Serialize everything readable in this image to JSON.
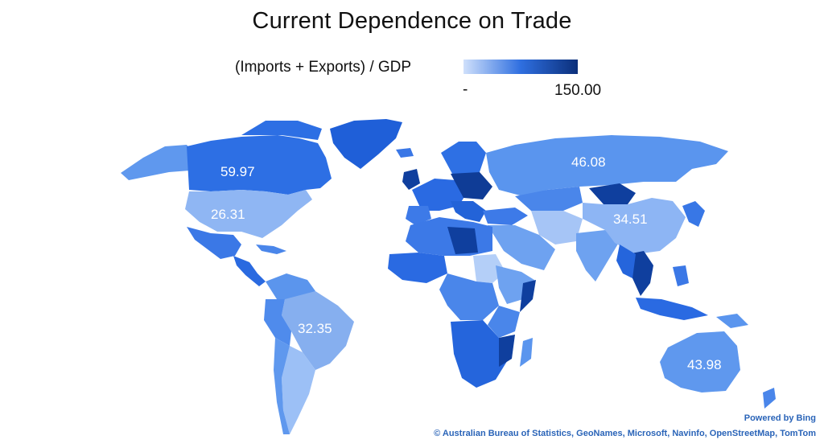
{
  "title": "Current Dependence on Trade",
  "legend": {
    "label": "(Imports + Exports) / GDP",
    "min_label": "-",
    "max_label": "150.00",
    "min_value": 0,
    "max_value": 150,
    "color_low": "#cfe0fb",
    "color_mid": "#2f6fe0",
    "color_high": "#0b2f7a"
  },
  "colors": {
    "ocean": "#ffffff",
    "attribution": "#2a64b8"
  },
  "value_labels": {
    "canada": "59.97",
    "united_states": "26.31",
    "brazil": "32.35",
    "russia": "46.08",
    "china": "34.51",
    "australia": "43.98"
  },
  "map_data": {
    "metric": "(Imports + Exports) / GDP",
    "labeled_regions": [
      {
        "name": "Canada",
        "value": 59.97
      },
      {
        "name": "United States",
        "value": 26.31
      },
      {
        "name": "Brazil",
        "value": 32.35
      },
      {
        "name": "Russia",
        "value": 46.08
      },
      {
        "name": "China",
        "value": 34.51
      },
      {
        "name": "Australia",
        "value": 43.98
      }
    ]
  },
  "attribution": {
    "powered_by": "Powered by Bing",
    "credits": "© Australian Bureau of Statistics, GeoNames, Microsoft, Navinfo, OpenStreetMap, TomTom"
  }
}
